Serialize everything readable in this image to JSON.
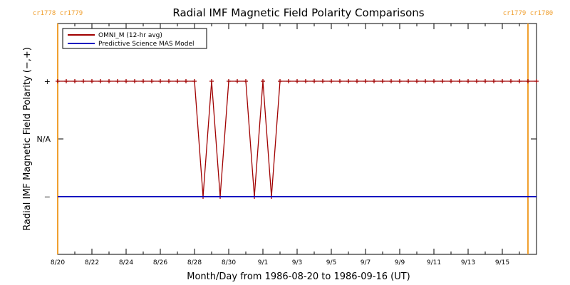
{
  "chart_data": {
    "type": "line",
    "title": "Radial IMF Magnetic Field Polarity Comparisons",
    "xlabel": "Month/Day from 1986-08-20 to 1986-09-16 (UT)",
    "ylabel": "Radial IMF Magnetic Field Polarity (−,+)",
    "x_start": "1986-08-20",
    "x_end": "1986-09-17",
    "xlim": [
      "1986-08-20",
      "1986-09-17"
    ],
    "ylim": [
      -2,
      2
    ],
    "x_ticks": [
      {
        "date": "1986-08-20",
        "label": "8/20"
      },
      {
        "date": "1986-08-22",
        "label": "8/22"
      },
      {
        "date": "1986-08-24",
        "label": "8/24"
      },
      {
        "date": "1986-08-26",
        "label": "8/26"
      },
      {
        "date": "1986-08-28",
        "label": "8/28"
      },
      {
        "date": "1986-08-30",
        "label": "8/30"
      },
      {
        "date": "1986-09-01",
        "label": "9/1"
      },
      {
        "date": "1986-09-03",
        "label": "9/3"
      },
      {
        "date": "1986-09-05",
        "label": "9/5"
      },
      {
        "date": "1986-09-07",
        "label": "9/7"
      },
      {
        "date": "1986-09-09",
        "label": "9/9"
      },
      {
        "date": "1986-09-11",
        "label": "9/11"
      },
      {
        "date": "1986-09-13",
        "label": "9/13"
      },
      {
        "date": "1986-09-15",
        "label": "9/15"
      }
    ],
    "y_ticks": [
      {
        "value": 1,
        "label": "+"
      },
      {
        "value": 0,
        "label": "N/A"
      },
      {
        "value": -1,
        "label": "−"
      }
    ],
    "legend": {
      "placement": "top-left",
      "entries": [
        {
          "name": "OMNI_M (12-hr avg)",
          "color": "#a00000"
        },
        {
          "name": "Predictive Science MAS Model",
          "color": "#0000c0"
        }
      ]
    },
    "carrington_markers": [
      {
        "date": "1986-08-20",
        "labels": [
          "cr1778",
          "cr1779"
        ]
      },
      {
        "date": "1986-09-16T12:00",
        "labels": [
          "cr1779",
          "cr1780"
        ]
      }
    ],
    "series": [
      {
        "name": "OMNI_M (12-hr avg)",
        "color": "#a00000",
        "marker": "+",
        "x": [
          "1986-08-20T00:00",
          "1986-08-20T12:00",
          "1986-08-21T00:00",
          "1986-08-21T12:00",
          "1986-08-22T00:00",
          "1986-08-22T12:00",
          "1986-08-23T00:00",
          "1986-08-23T12:00",
          "1986-08-24T00:00",
          "1986-08-24T12:00",
          "1986-08-25T00:00",
          "1986-08-25T12:00",
          "1986-08-26T00:00",
          "1986-08-26T12:00",
          "1986-08-27T00:00",
          "1986-08-27T12:00",
          "1986-08-28T00:00",
          "1986-08-28T12:00",
          "1986-08-29T00:00",
          "1986-08-29T12:00",
          "1986-08-30T00:00",
          "1986-08-30T12:00",
          "1986-08-31T00:00",
          "1986-08-31T12:00",
          "1986-09-01T00:00",
          "1986-09-01T12:00",
          "1986-09-02T00:00",
          "1986-09-02T12:00",
          "1986-09-03T00:00",
          "1986-09-03T12:00",
          "1986-09-04T00:00",
          "1986-09-04T12:00",
          "1986-09-05T00:00",
          "1986-09-05T12:00",
          "1986-09-06T00:00",
          "1986-09-06T12:00",
          "1986-09-07T00:00",
          "1986-09-07T12:00",
          "1986-09-08T00:00",
          "1986-09-08T12:00",
          "1986-09-09T00:00",
          "1986-09-09T12:00",
          "1986-09-10T00:00",
          "1986-09-10T12:00",
          "1986-09-11T00:00",
          "1986-09-11T12:00",
          "1986-09-12T00:00",
          "1986-09-12T12:00",
          "1986-09-13T00:00",
          "1986-09-13T12:00",
          "1986-09-14T00:00",
          "1986-09-14T12:00",
          "1986-09-15T00:00",
          "1986-09-15T12:00",
          "1986-09-16T00:00",
          "1986-09-16T12:00",
          "1986-09-17T00:00"
        ],
        "y": [
          1,
          1,
          1,
          1,
          1,
          1,
          1,
          1,
          1,
          1,
          1,
          1,
          1,
          1,
          1,
          1,
          1,
          -1,
          1,
          -1,
          1,
          1,
          1,
          -1,
          1,
          -1,
          1,
          1,
          1,
          1,
          1,
          1,
          1,
          1,
          1,
          1,
          1,
          1,
          1,
          1,
          1,
          1,
          1,
          1,
          1,
          1,
          1,
          1,
          1,
          1,
          1,
          1,
          1,
          1,
          1,
          1,
          1
        ]
      },
      {
        "name": "Predictive Science MAS Model",
        "color": "#0000c0",
        "x": [
          "1986-08-20T00:00",
          "1986-09-17T00:00"
        ],
        "y": [
          -1,
          -1
        ]
      }
    ],
    "grid": false
  }
}
